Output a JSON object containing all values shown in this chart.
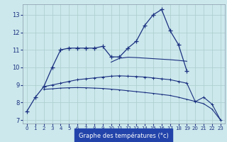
{
  "xlabel": "Graphe des températures (°c)",
  "bg_color": "#cce8ec",
  "grid_color": "#aacccc",
  "line_color": "#1a3080",
  "xlabel_bg": "#2244aa",
  "xlim": [
    -0.5,
    23.5
  ],
  "ylim": [
    6.8,
    13.6
  ],
  "yticks": [
    7,
    8,
    9,
    10,
    11,
    12,
    13
  ],
  "xticks": [
    0,
    1,
    2,
    3,
    4,
    5,
    6,
    7,
    8,
    9,
    10,
    11,
    12,
    13,
    14,
    15,
    16,
    17,
    18,
    19,
    20,
    21,
    22,
    23
  ],
  "s1x": [
    0,
    1,
    2,
    3,
    4,
    5,
    6,
    7,
    8,
    9,
    10,
    11,
    12,
    13,
    14,
    15,
    16,
    17,
    18,
    19
  ],
  "s1y": [
    7.5,
    8.3,
    8.9,
    10.0,
    11.0,
    11.1,
    11.1,
    11.1,
    11.1,
    11.2,
    10.6,
    10.6,
    11.1,
    11.5,
    12.4,
    13.0,
    13.3,
    12.1,
    11.3,
    9.8
  ],
  "s2x": [
    2,
    3,
    4,
    5,
    6,
    7,
    8,
    9,
    10,
    11,
    12,
    13,
    14,
    15,
    16,
    17,
    18,
    19,
    20,
    21,
    22,
    23
  ],
  "s2y": [
    8.9,
    9.0,
    9.1,
    9.2,
    9.3,
    9.35,
    9.4,
    9.45,
    9.5,
    9.52,
    9.5,
    9.48,
    9.45,
    9.4,
    9.35,
    9.3,
    9.2,
    9.1,
    8.05,
    8.3,
    7.9,
    7.0
  ],
  "s3x": [
    2,
    3,
    4,
    5,
    6,
    7,
    8,
    9,
    10,
    11,
    12,
    13,
    14,
    15,
    16,
    17,
    18,
    19,
    20,
    21,
    22,
    23
  ],
  "s3y": [
    8.75,
    8.78,
    8.82,
    8.84,
    8.85,
    8.84,
    8.82,
    8.8,
    8.76,
    8.72,
    8.67,
    8.62,
    8.57,
    8.52,
    8.46,
    8.4,
    8.3,
    8.18,
    8.06,
    7.93,
    7.62,
    7.0
  ],
  "s4x": [
    10,
    11,
    12,
    13,
    14,
    15,
    16,
    17,
    18,
    19
  ],
  "s4y": [
    10.3,
    10.52,
    10.58,
    10.56,
    10.53,
    10.5,
    10.47,
    10.44,
    10.4,
    10.35
  ]
}
